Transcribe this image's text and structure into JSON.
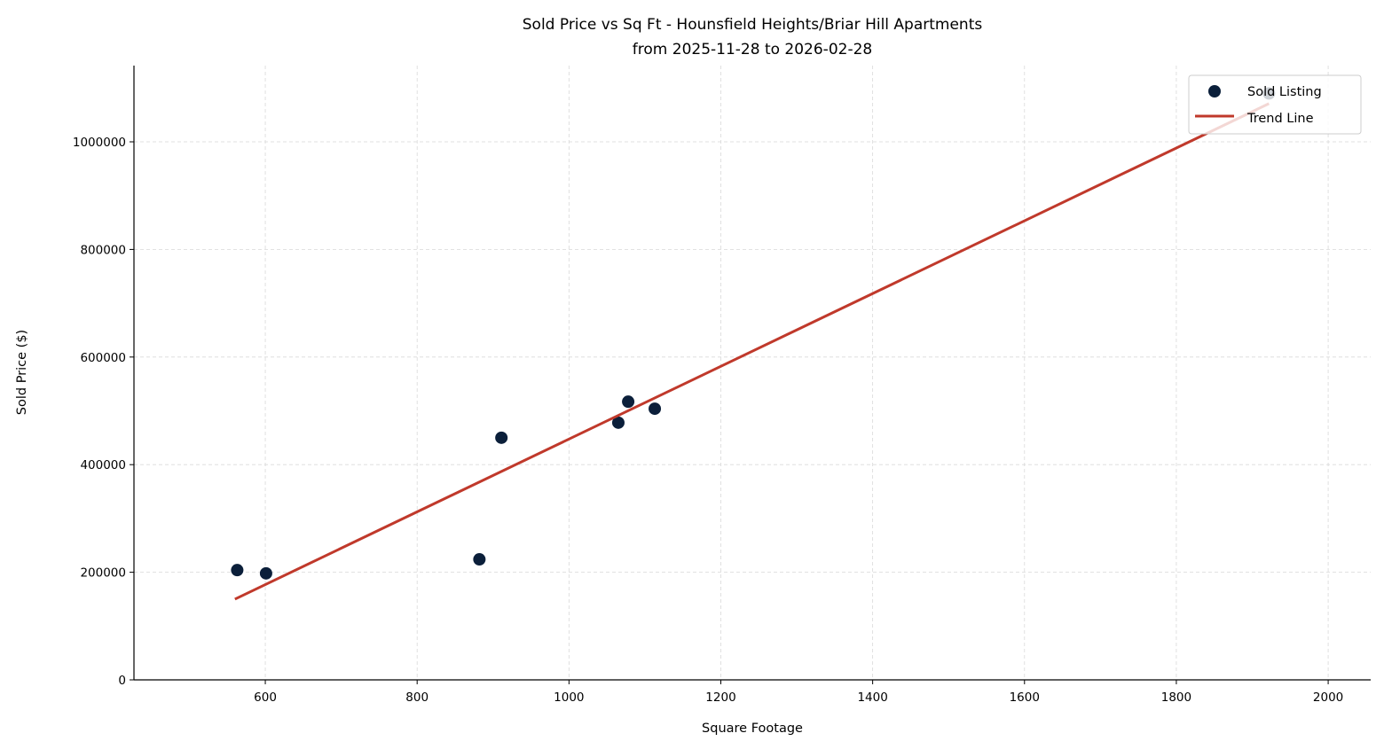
{
  "chart_data": {
    "type": "scatter",
    "title": "Sold Price vs Sq Ft - Hounsfield Heights/Briar Hill Apartments",
    "subtitle": "from 2025-11-28 to 2026-02-28",
    "xlabel": "Square Footage",
    "ylabel": "Sold Price ($)",
    "xlim": [
      427,
      2056
    ],
    "ylim": [
      0,
      1141700
    ],
    "xticks": [
      600,
      800,
      1000,
      1200,
      1400,
      1600,
      1800,
      2000
    ],
    "yticks": [
      0,
      200000,
      400000,
      600000,
      800000,
      1000000
    ],
    "grid": true,
    "legend_position": "top-right",
    "series": [
      {
        "name": "Sold Listing",
        "type": "scatter",
        "color": "#0b1f3a",
        "points": [
          [
            563,
            204000
          ],
          [
            601,
            198000
          ],
          [
            882,
            224000
          ],
          [
            911,
            450000
          ],
          [
            1065,
            478000
          ],
          [
            1078,
            517000
          ],
          [
            1113,
            504000
          ],
          [
            1922,
            1090000
          ]
        ]
      },
      {
        "name": "Trend Line",
        "type": "line",
        "color": "#c0392b",
        "points": [
          [
            560,
            150000
          ],
          [
            1922,
            1071000
          ]
        ]
      }
    ]
  }
}
